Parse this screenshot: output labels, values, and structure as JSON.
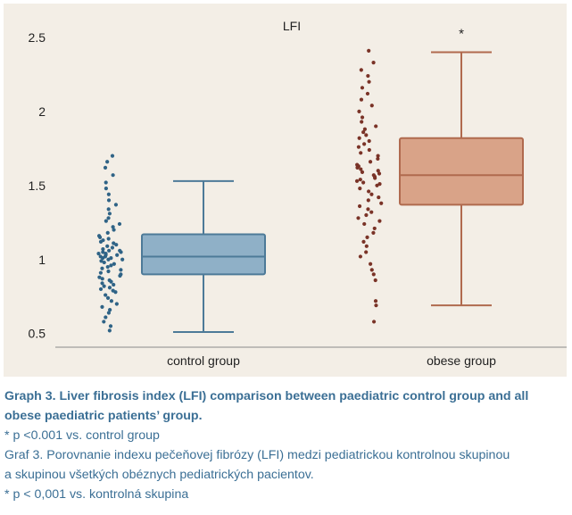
{
  "colors": {
    "panel_bg": "#f3eee6",
    "control_fill": "#8fb0c7",
    "control_stroke": "#4d7a98",
    "control_points": "#2f6386",
    "obese_fill": "#d9a388",
    "obese_stroke": "#b06a4e",
    "obese_points": "#7a3327",
    "caption": "#3b6f95"
  },
  "chart_data": {
    "type": "box",
    "title": "LFI",
    "xlabel": "",
    "ylabel": "",
    "ylim": [
      0.45,
      2.62
    ],
    "yticks": [
      0.5,
      1,
      1.5,
      2,
      2.5
    ],
    "ytick_labels": [
      "0.5",
      "1",
      "1.5",
      "2",
      "2.5"
    ],
    "grid": false,
    "categories": [
      "control group",
      "obese group"
    ],
    "boxes": [
      {
        "category": "control group",
        "whisker_low": 0.51,
        "q1": 0.9,
        "median": 1.02,
        "q3": 1.17,
        "whisker_high": 1.53,
        "outliers": []
      },
      {
        "category": "obese group",
        "whisker_low": 0.69,
        "q1": 1.37,
        "median": 1.57,
        "q3": 1.82,
        "whisker_high": 2.4,
        "outliers": []
      }
    ],
    "significance": {
      "category": "obese group",
      "marker": "*",
      "y": 2.55
    },
    "points": [
      {
        "category": "control group",
        "values": [
          0.52,
          0.55,
          0.58,
          0.61,
          0.64,
          0.66,
          0.68,
          0.7,
          0.72,
          0.74,
          0.76,
          0.78,
          0.79,
          0.8,
          0.81,
          0.82,
          0.83,
          0.84,
          0.85,
          0.86,
          0.87,
          0.88,
          0.89,
          0.9,
          0.91,
          0.92,
          0.93,
          0.94,
          0.95,
          0.96,
          0.97,
          0.98,
          0.99,
          1.0,
          1.0,
          1.01,
          1.01,
          1.02,
          1.02,
          1.03,
          1.03,
          1.04,
          1.04,
          1.05,
          1.05,
          1.06,
          1.06,
          1.07,
          1.08,
          1.09,
          1.1,
          1.11,
          1.12,
          1.13,
          1.14,
          1.15,
          1.16,
          1.18,
          1.2,
          1.22,
          1.24,
          1.26,
          1.28,
          1.31,
          1.34,
          1.37,
          1.4,
          1.44,
          1.48,
          1.52,
          1.57,
          1.62,
          1.66,
          1.7
        ]
      },
      {
        "category": "obese group",
        "values": [
          0.58,
          0.69,
          0.72,
          0.86,
          0.9,
          0.93,
          0.97,
          1.02,
          1.05,
          1.09,
          1.12,
          1.15,
          1.18,
          1.21,
          1.24,
          1.26,
          1.28,
          1.3,
          1.32,
          1.34,
          1.36,
          1.38,
          1.4,
          1.42,
          1.44,
          1.46,
          1.48,
          1.5,
          1.51,
          1.52,
          1.53,
          1.54,
          1.55,
          1.56,
          1.57,
          1.58,
          1.59,
          1.6,
          1.61,
          1.62,
          1.63,
          1.64,
          1.66,
          1.68,
          1.7,
          1.72,
          1.74,
          1.76,
          1.78,
          1.8,
          1.82,
          1.84,
          1.86,
          1.88,
          1.9,
          1.93,
          1.96,
          2.0,
          2.04,
          2.08,
          2.12,
          2.16,
          2.2,
          2.24,
          2.28,
          2.33,
          2.41
        ]
      }
    ]
  },
  "captions": {
    "line1": "Graph 3. Liver fibrosis index (LFI) comparison between paediatric control group and all",
    "line2": "obese paediatric patients’ group.",
    "line3": "* p <0.001 vs. control group",
    "line4": "Graf 3. Porovnanie indexu pečeňovej fibrózy (LFI) medzi pediatrickou kontrolnou skupinou",
    "line5": "a skupinou všetkých obéznych pediatrických pacientov.",
    "line6": "* p < 0,001 vs. kontrolná skupina"
  }
}
